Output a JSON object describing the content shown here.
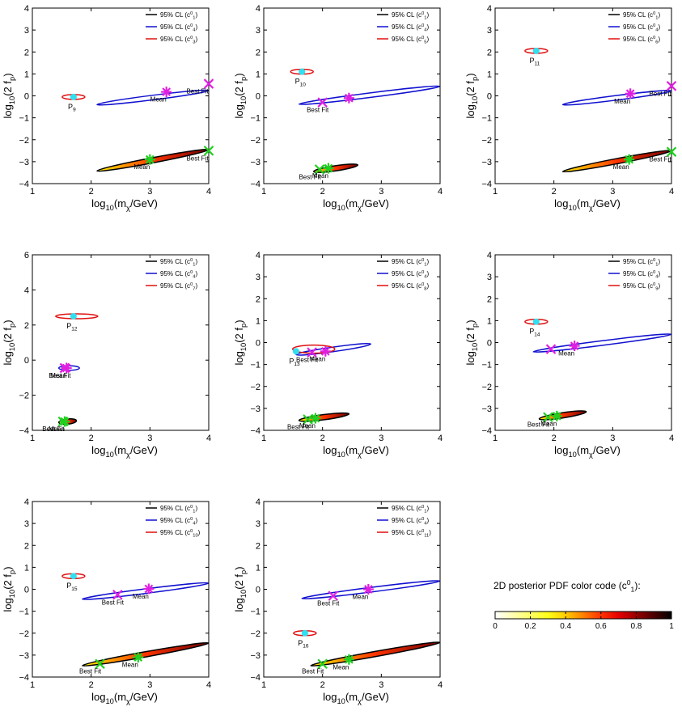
{
  "colors": {
    "c1": "#000000",
    "c4": "#1010d0",
    "c_other": "#e01010",
    "mean_marker": "#e020e0",
    "fit_marker_blue": "#e020e0",
    "fit_marker_black": "#20d020",
    "benchmark_point": "#30e0f0"
  },
  "colorbar": {
    "title": "2D posterior PDF color code (c",
    "title_sup": "0",
    "title_sub": "1",
    "title_end": "):",
    "ticks": [
      "0",
      "0.2",
      "0.4",
      "0.6",
      "0.8",
      "1"
    ],
    "tick_values": [
      0,
      0.2,
      0.4,
      0.6,
      0.8,
      1
    ],
    "colormap": "hot (reversed)"
  },
  "chart_data": [
    {
      "type": "scatter",
      "xlabel": "log10(mχ/GeV)",
      "ylabel": "log10(2 fp)",
      "xlim": [
        1,
        4
      ],
      "ylim": [
        -4,
        4
      ],
      "xticks": [
        1,
        2,
        3,
        4
      ],
      "yticks": [
        -4,
        -3,
        -2,
        -1,
        0,
        1,
        2,
        3,
        4
      ],
      "legend": [
        "95% CL (c1 0)",
        "95% CL (c4 0)",
        "95% CL (c3 0)"
      ],
      "legend_position": "top-right",
      "point_label": "P9",
      "point": [
        1.7,
        -0.05
      ],
      "blue": {
        "mean": [
          3.28,
          0.18
        ],
        "best_fit": [
          4.0,
          0.55
        ]
      },
      "black": {
        "mean": [
          3.0,
          -2.9
        ],
        "best_fit": [
          4.0,
          -2.5
        ]
      },
      "labels": {
        "blue_mean": "Mean",
        "blue_fit": "Best Fit",
        "black_mean": "Mean",
        "black_fit": "Best Fit"
      }
    },
    {
      "type": "scatter",
      "xlabel": "log10(mχ/GeV)",
      "ylabel": "log10(2 fp)",
      "xlim": [
        1,
        4
      ],
      "ylim": [
        -4,
        4
      ],
      "xticks": [
        1,
        2,
        3,
        4
      ],
      "yticks": [
        -4,
        -3,
        -2,
        -1,
        0,
        1,
        2,
        3,
        4
      ],
      "legend": [
        "95% CL (c1 0)",
        "95% CL (c4 0)",
        "95% CL (c5 0)"
      ],
      "legend_position": "top-right",
      "point_label": "P10",
      "point": [
        1.65,
        1.1
      ],
      "blue": {
        "mean": [
          2.45,
          -0.1
        ],
        "best_fit": [
          2.0,
          -0.3
        ]
      },
      "black": {
        "mean": [
          2.1,
          -3.3
        ],
        "best_fit": [
          1.95,
          -3.35
        ]
      },
      "labels": {
        "blue_mean": "",
        "blue_fit": "Best Fit",
        "black_mean": "Mean",
        "black_fit": "Best Fit"
      }
    },
    {
      "type": "scatter",
      "xlabel": "log10(mχ/GeV)",
      "ylabel": "log10(2 fp)",
      "xlim": [
        1,
        4
      ],
      "ylim": [
        -4,
        4
      ],
      "xticks": [
        1,
        2,
        3,
        4
      ],
      "yticks": [
        -4,
        -3,
        -2,
        -1,
        0,
        1,
        2,
        3,
        4
      ],
      "legend": [
        "95% CL (c1 0)",
        "95% CL (c4 0)",
        "95% CL (c6 0)"
      ],
      "legend_position": "top-right",
      "point_label": "P11",
      "point": [
        1.7,
        2.05
      ],
      "blue": {
        "mean": [
          3.3,
          0.1
        ],
        "best_fit": [
          4.0,
          0.45
        ]
      },
      "black": {
        "mean": [
          3.28,
          -2.9
        ],
        "best_fit": [
          4.0,
          -2.55
        ]
      },
      "labels": {
        "blue_mean": "Mean",
        "blue_fit": "Best Fit",
        "black_mean": "Mean",
        "black_fit": "Best Fit"
      }
    },
    {
      "type": "scatter",
      "xlabel": "log10(mχ/GeV)",
      "ylabel": "log10(2 fp)",
      "xlim": [
        1,
        4
      ],
      "ylim": [
        -4,
        6
      ],
      "xticks": [
        1,
        2,
        3,
        4
      ],
      "yticks": [
        -4,
        -2,
        0,
        2,
        4,
        6
      ],
      "legend": [
        "95% CL (c1 0)",
        "95% CL (c4 0)",
        "95% CL (c7 0)"
      ],
      "legend_position": "top-right",
      "point_label": "P12",
      "point": [
        1.7,
        2.5
      ],
      "blue": {
        "mean": [
          1.58,
          -0.45
        ],
        "best_fit": [
          1.55,
          -0.45
        ]
      },
      "black": {
        "mean": [
          1.55,
          -3.5
        ],
        "best_fit": [
          1.52,
          -3.5
        ]
      },
      "labels": {
        "blue_mean": "Mean",
        "blue_fit": "Best Fit",
        "black_mean": "Mean",
        "black_fit": "Best Fit"
      }
    },
    {
      "type": "scatter",
      "xlabel": "log10(mχ/GeV)",
      "ylabel": "log10(2 fp)",
      "xlim": [
        1,
        4
      ],
      "ylim": [
        -4,
        4
      ],
      "xticks": [
        1,
        2,
        3,
        4
      ],
      "yticks": [
        -4,
        -3,
        -2,
        -1,
        0,
        1,
        2,
        3,
        4
      ],
      "legend": [
        "95% CL (c1 0)",
        "95% CL (c4 0)",
        "95% CL (c8 0)"
      ],
      "legend_position": "top-right",
      "point_label": "P13",
      "point": [
        1.55,
        -0.4
      ],
      "blue": {
        "mean": [
          2.05,
          -0.4
        ],
        "best_fit": [
          1.82,
          -0.45
        ]
      },
      "black": {
        "mean": [
          1.88,
          -3.45
        ],
        "best_fit": [
          1.75,
          -3.5
        ]
      },
      "labels": {
        "blue_mean": "Mean",
        "blue_fit": "Best Fit",
        "black_mean": "Mean",
        "black_fit": "Best Fit"
      }
    },
    {
      "type": "scatter",
      "xlabel": "log10(mχ/GeV)",
      "ylabel": "log10(2 fp)",
      "xlim": [
        1,
        4
      ],
      "ylim": [
        -4,
        4
      ],
      "xticks": [
        1,
        2,
        3,
        4
      ],
      "yticks": [
        -4,
        -3,
        -2,
        -1,
        0,
        1,
        2,
        3,
        4
      ],
      "legend": [
        "95% CL (c1 0)",
        "95% CL (c4 0)",
        "95% CL (c9 0)"
      ],
      "legend_position": "top-right",
      "point_label": "P14",
      "point": [
        1.7,
        0.95
      ],
      "blue": {
        "mean": [
          2.35,
          -0.15
        ],
        "best_fit": [
          1.95,
          -0.3
        ]
      },
      "black": {
        "mean": [
          2.05,
          -3.35
        ],
        "best_fit": [
          1.9,
          -3.4
        ]
      },
      "labels": {
        "blue_mean": "Mean",
        "blue_fit": "",
        "black_mean": "Mean",
        "black_fit": "Best Fit"
      }
    },
    {
      "type": "scatter",
      "xlabel": "log10(mχ/GeV)",
      "ylabel": "log10(2 fp)",
      "xlim": [
        1,
        4
      ],
      "ylim": [
        -4,
        4
      ],
      "xticks": [
        1,
        2,
        3,
        4
      ],
      "yticks": [
        -4,
        -3,
        -2,
        -1,
        0,
        1,
        2,
        3,
        4
      ],
      "legend": [
        "95% CL (c1 0)",
        "95% CL (c4 0)",
        "95% CL (c10 0)"
      ],
      "legend_position": "top-right",
      "point_label": "P15",
      "point": [
        1.7,
        0.6
      ],
      "blue": {
        "mean": [
          2.98,
          0.02
        ],
        "best_fit": [
          2.45,
          -0.25
        ]
      },
      "black": {
        "mean": [
          2.8,
          -3.1
        ],
        "best_fit": [
          2.15,
          -3.4
        ]
      },
      "labels": {
        "blue_mean": "Mean",
        "blue_fit": "Best Fit",
        "black_mean": "Mean",
        "black_fit": "Best Fit"
      }
    },
    {
      "type": "scatter",
      "xlabel": "log10(mχ/GeV)",
      "ylabel": "log10(2 fp)",
      "xlim": [
        1,
        4
      ],
      "ylim": [
        -4,
        4
      ],
      "xticks": [
        1,
        2,
        3,
        4
      ],
      "yticks": [
        -4,
        -3,
        -2,
        -1,
        0,
        1,
        2,
        3,
        4
      ],
      "legend": [
        "95% CL (c1 0)",
        "95% CL (c4 0)",
        "95% CL (c11 0)"
      ],
      "legend_position": "top-right",
      "point_label": "P16",
      "point": [
        1.7,
        -2.0
      ],
      "blue": {
        "mean": [
          2.78,
          0.0
        ],
        "best_fit": [
          2.18,
          -0.3
        ]
      },
      "black": {
        "mean": [
          2.45,
          -3.2
        ],
        "best_fit": [
          2.0,
          -3.4
        ]
      },
      "labels": {
        "blue_mean": "Mean",
        "blue_fit": "Best Fit",
        "black_mean": "Mean",
        "black_fit": "Best Fit"
      }
    }
  ]
}
